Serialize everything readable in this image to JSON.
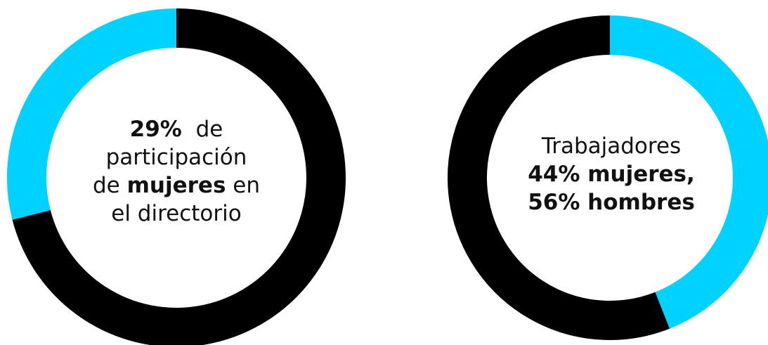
{
  "chart_data": [
    {
      "type": "pie",
      "series": [
        {
          "values": [
            29,
            71
          ]
        }
      ],
      "colors": [
        "#00d2ff",
        "#000000"
      ],
      "center_text": {
        "value": "29%",
        "after_value": "de",
        "line2": "participación",
        "line3_prefix": "de",
        "line3_bold": "mujeres",
        "line3_suffix": "en",
        "line4": "el directorio"
      }
    },
    {
      "type": "pie",
      "series": [
        {
          "values": [
            44,
            56
          ]
        }
      ],
      "colors": [
        "#00d2ff",
        "#000000"
      ],
      "center_text": {
        "line1": "Trabajadores",
        "line2": "44% mujeres,",
        "line3": "56% hombres"
      }
    }
  ]
}
